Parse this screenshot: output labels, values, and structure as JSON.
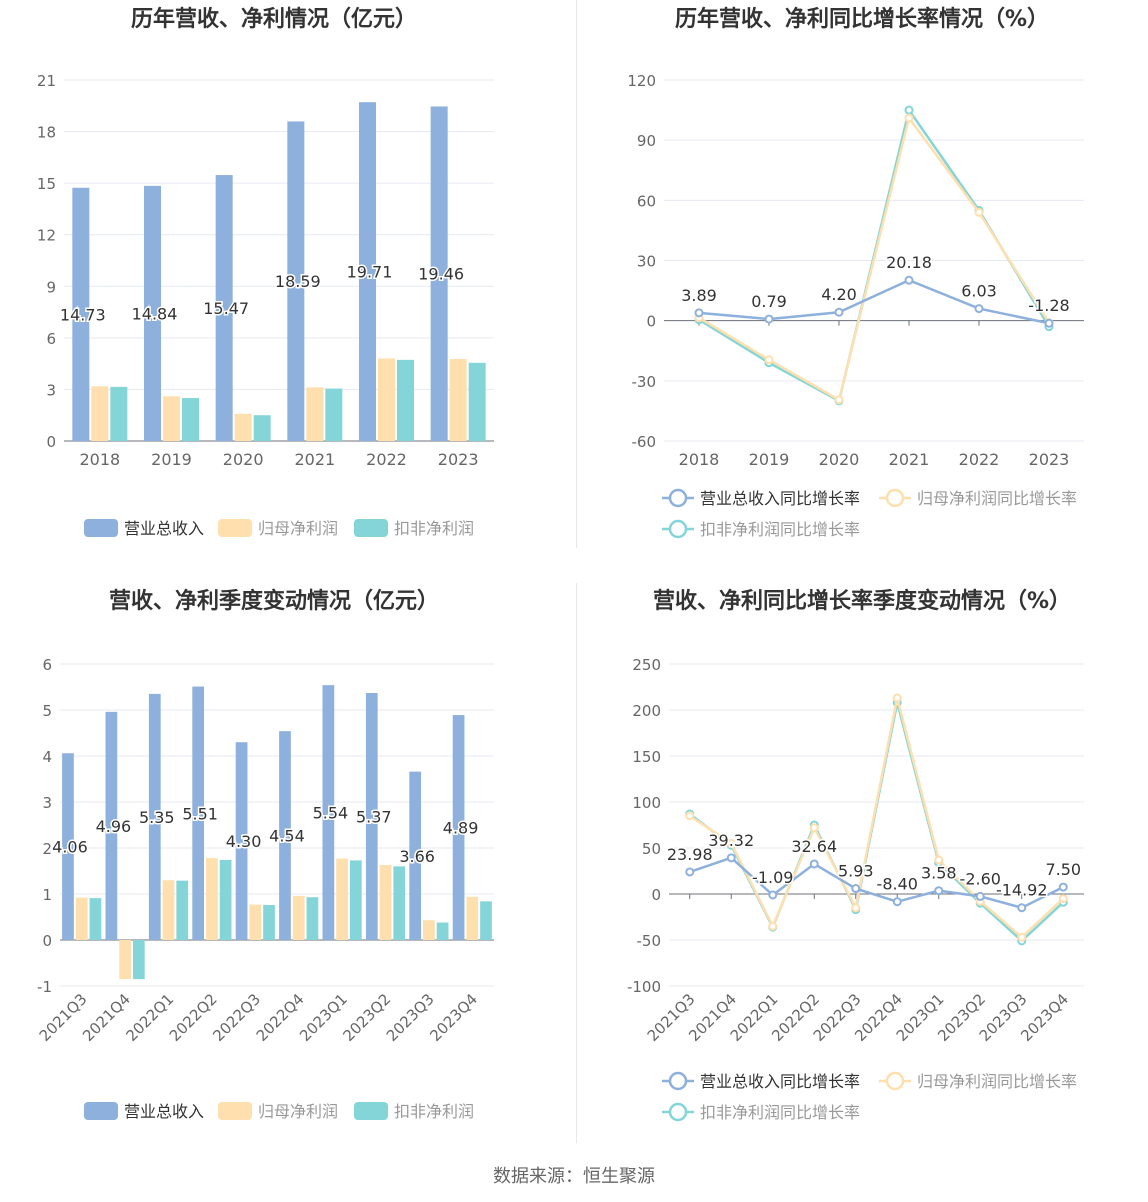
{
  "source": "数据来源：恒生聚源",
  "colors": {
    "revenue": "#8eb0dc",
    "net_profit": "#fedfad",
    "deducted_profit": "#84d5d7",
    "title": "#333333",
    "axis_text": "#666666",
    "grid": "#e6e9f2"
  },
  "chart_data": [
    {
      "type": "bar",
      "title": "历年营收、净利情况（亿元）",
      "categories": [
        "2018",
        "2019",
        "2020",
        "2021",
        "2022",
        "2023"
      ],
      "ylim": [
        0,
        21
      ],
      "yticks": [
        0,
        3,
        6,
        9,
        12,
        15,
        18,
        21
      ],
      "grid": true,
      "legend_position": "bottom",
      "series": [
        {
          "name": "营业总收入",
          "values": [
            14.73,
            14.84,
            15.47,
            18.59,
            19.71,
            19.46
          ],
          "labels": [
            "14.73",
            "14.84",
            "15.47",
            "18.59",
            "19.71",
            "19.46"
          ]
        },
        {
          "name": "归母净利润",
          "values": [
            3.18,
            2.6,
            1.58,
            3.12,
            4.8,
            4.77
          ]
        },
        {
          "name": "扣非净利润",
          "values": [
            3.15,
            2.5,
            1.5,
            3.05,
            4.72,
            4.55
          ]
        }
      ]
    },
    {
      "type": "line",
      "title": "历年营收、净利同比增长率情况（%）",
      "categories": [
        "2018",
        "2019",
        "2020",
        "2021",
        "2022",
        "2023"
      ],
      "ylim": [
        -60,
        120
      ],
      "yticks": [
        -60,
        -30,
        0,
        30,
        60,
        90,
        120
      ],
      "grid": true,
      "legend_position": "bottom",
      "series": [
        {
          "name": "营业总收入同比增长率",
          "values": [
            3.89,
            0.79,
            4.2,
            20.18,
            6.03,
            -1.28
          ],
          "labels": [
            "3.89",
            "0.79",
            "4.20",
            "20.18",
            "6.03",
            "-1.28"
          ]
        },
        {
          "name": "归母净利润同比增长率",
          "values": [
            1.5,
            -19.5,
            -39.5,
            101.0,
            54.0,
            -1.0
          ]
        },
        {
          "name": "扣非净利润同比增长率",
          "values": [
            0.5,
            -21.0,
            -40.0,
            105.0,
            55.0,
            -3.0
          ]
        }
      ]
    },
    {
      "type": "bar",
      "title": "营收、净利季度变动情况（亿元）",
      "categories": [
        "2021Q3",
        "2021Q4",
        "2022Q1",
        "2022Q2",
        "2022Q3",
        "2022Q4",
        "2023Q1",
        "2023Q2",
        "2023Q3",
        "2023Q4"
      ],
      "ylim": [
        -1,
        6
      ],
      "yticks": [
        -1,
        0,
        1,
        2,
        3,
        4,
        5,
        6
      ],
      "grid": true,
      "legend_position": "bottom",
      "series": [
        {
          "name": "营业总收入",
          "values": [
            4.06,
            4.96,
            5.35,
            5.51,
            4.3,
            4.54,
            5.54,
            5.37,
            3.66,
            4.89
          ],
          "labels": [
            "4.06",
            "4.96",
            "5.35",
            "5.51",
            "4.30",
            "4.54",
            "5.54",
            "5.37",
            "3.66",
            "4.89"
          ]
        },
        {
          "name": "归母净利润",
          "values": [
            0.92,
            -0.85,
            1.3,
            1.78,
            0.77,
            0.96,
            1.77,
            1.63,
            0.43,
            0.94
          ]
        },
        {
          "name": "扣非净利润",
          "values": [
            0.91,
            -0.85,
            1.29,
            1.74,
            0.76,
            0.93,
            1.73,
            1.6,
            0.38,
            0.84
          ]
        }
      ]
    },
    {
      "type": "line",
      "title": "营收、净利同比增长率季度变动情况（%）",
      "categories": [
        "2021Q3",
        "2021Q4",
        "2022Q1",
        "2022Q2",
        "2022Q3",
        "2022Q4",
        "2023Q1",
        "2023Q2",
        "2023Q3",
        "2023Q4"
      ],
      "ylim": [
        -100,
        250
      ],
      "yticks": [
        -100,
        -50,
        0,
        50,
        100,
        150,
        200,
        250
      ],
      "grid": true,
      "legend_position": "bottom",
      "series": [
        {
          "name": "营业总收入同比增长率",
          "values": [
            23.98,
            39.32,
            -1.09,
            32.64,
            5.93,
            -8.4,
            3.58,
            -2.6,
            -14.92,
            7.5
          ],
          "labels": [
            "23.98",
            "39.32",
            "-1.09",
            "32.64",
            "5.93",
            "-8.40",
            "3.58",
            "-2.60",
            "-14.92",
            "7.50"
          ]
        },
        {
          "name": "归母净利润同比增长率",
          "values": [
            85,
            55,
            -35,
            72,
            -15,
            213,
            37,
            -8,
            -47,
            -5
          ]
        },
        {
          "name": "扣非净利润同比增长率",
          "values": [
            87,
            53,
            -36,
            75,
            -17,
            208,
            34,
            -10,
            -51,
            -9
          ]
        }
      ]
    }
  ]
}
